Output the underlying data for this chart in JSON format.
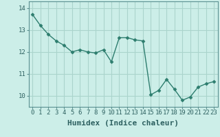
{
  "x": [
    0,
    1,
    2,
    3,
    4,
    5,
    6,
    7,
    8,
    9,
    10,
    11,
    12,
    13,
    14,
    15,
    16,
    17,
    18,
    19,
    20,
    21,
    22,
    23
  ],
  "y": [
    13.7,
    13.2,
    12.8,
    12.5,
    12.3,
    12.0,
    12.1,
    12.0,
    11.95,
    12.1,
    11.55,
    12.65,
    12.65,
    12.55,
    12.5,
    10.05,
    10.25,
    10.75,
    10.3,
    9.8,
    9.95,
    10.4,
    10.55,
    10.65
  ],
  "line_color": "#2d7d6e",
  "marker": "D",
  "marker_size": 2.5,
  "linewidth": 1.0,
  "bg_color": "#cceee8",
  "grid_color": "#aad4cc",
  "xlabel": "Humidex (Indice chaleur)",
  "xlabel_fontsize": 8,
  "tick_fontsize": 6.5,
  "ylim": [
    9.5,
    14.3
  ],
  "xlim": [
    -0.5,
    23.5
  ],
  "yticks": [
    10,
    11,
    12,
    13,
    14
  ],
  "xticks": [
    0,
    1,
    2,
    3,
    4,
    5,
    6,
    7,
    8,
    9,
    10,
    11,
    12,
    13,
    14,
    15,
    16,
    17,
    18,
    19,
    20,
    21,
    22,
    23
  ]
}
